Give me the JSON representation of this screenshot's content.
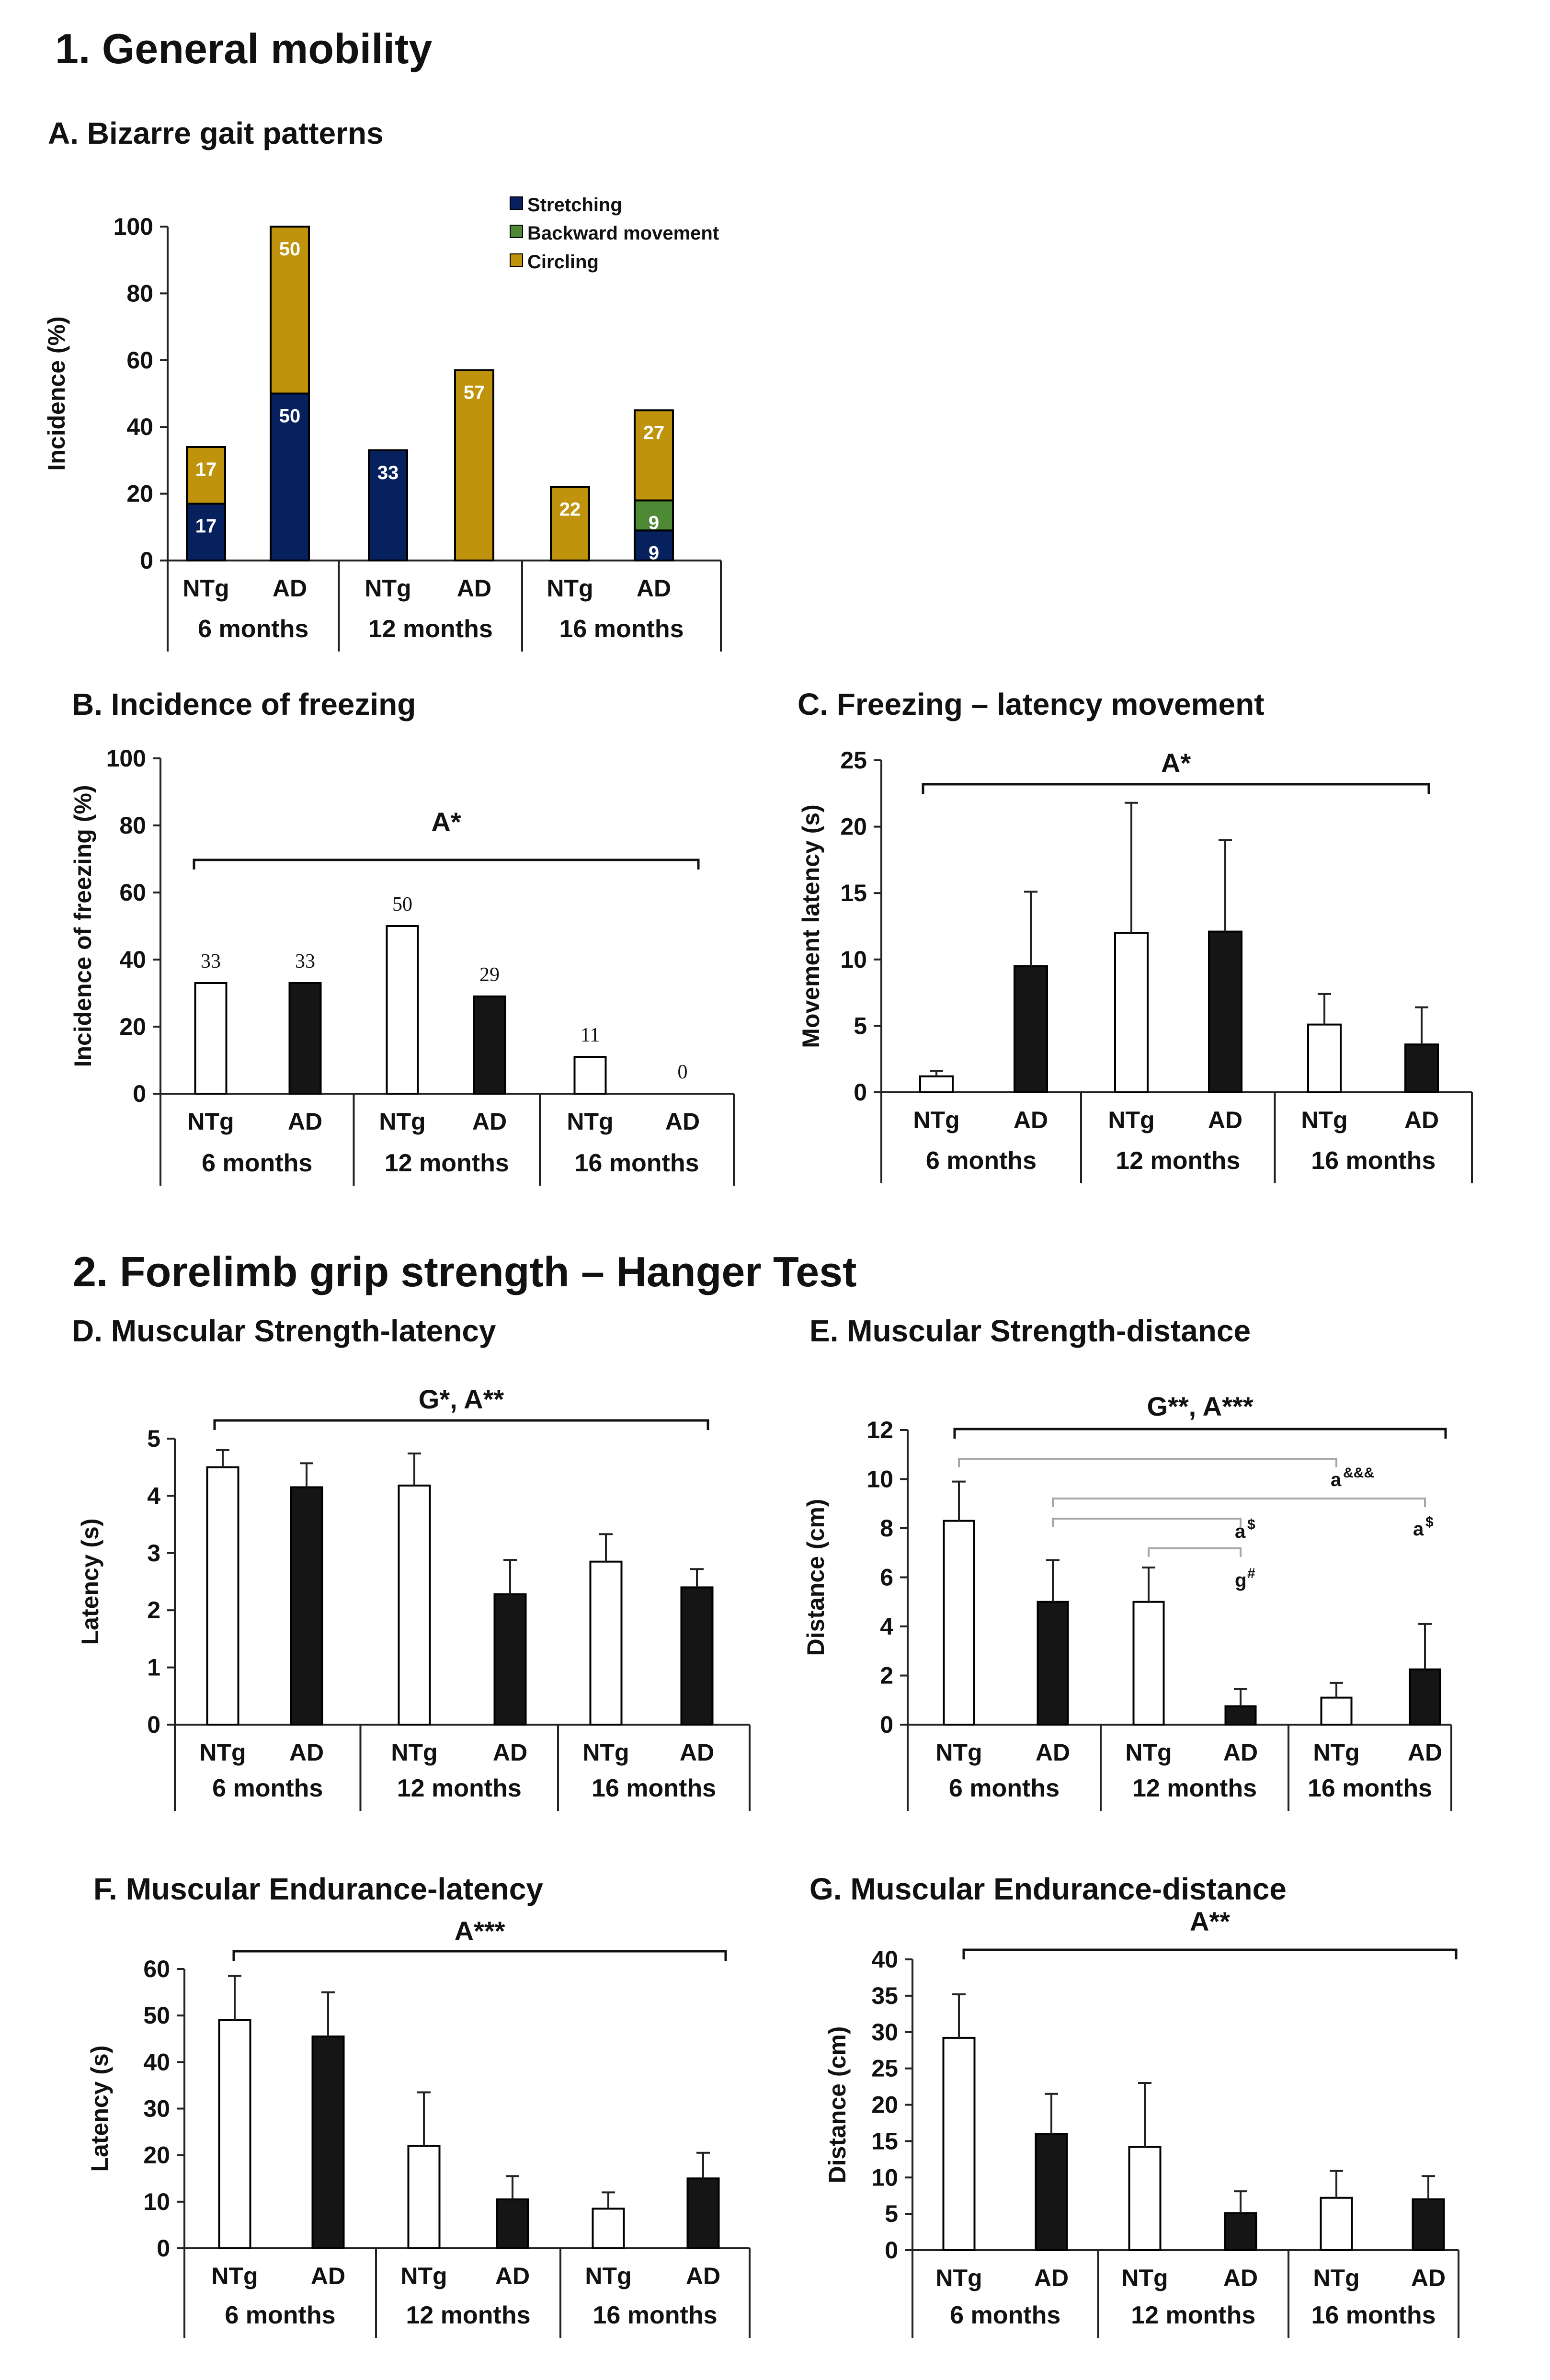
{
  "colors": {
    "stretching": "#06215e",
    "backward": "#4e8a36",
    "circling": "#c0930c",
    "ad_bar": "#151515",
    "ntg_bar": "#ffffff",
    "bracket_light": "#a6a6a6"
  },
  "sections": {
    "general": "1.  General mobility",
    "grip": "2. Forelimb grip strength – Hanger Test"
  },
  "chart_data": [
    {
      "id": "A",
      "type": "bar",
      "stacked": true,
      "title": "A.  Bizarre gait patterns",
      "ylabel": "Incidence (%)",
      "ylim": [
        0,
        100
      ],
      "yticks": [
        0,
        20,
        40,
        60,
        80,
        100
      ],
      "categories": [
        "NTg",
        "AD",
        "NTg",
        "AD",
        "NTg",
        "AD"
      ],
      "groups": [
        "6 months",
        "12 months",
        "16 months"
      ],
      "legend": [
        "Stretching",
        "Backward movement",
        "Circling"
      ],
      "series": [
        {
          "name": "Stretching",
          "values": [
            17,
            50,
            33,
            0,
            0,
            9
          ],
          "labels": [
            "17",
            "50",
            "33",
            "",
            "",
            "9"
          ]
        },
        {
          "name": "Backward movement",
          "values": [
            0,
            0,
            0,
            0,
            0,
            9
          ],
          "labels": [
            "",
            "",
            "",
            "",
            "",
            "9"
          ]
        },
        {
          "name": "Circling",
          "values": [
            17,
            50,
            0,
            57,
            22,
            27
          ],
          "labels": [
            "17",
            "50",
            "",
            "57",
            "22",
            "27"
          ]
        }
      ]
    },
    {
      "id": "B",
      "type": "bar",
      "title": "B. Incidence  of freezing",
      "ylabel": "Incidence of freezing (%)",
      "ylim": [
        0,
        100
      ],
      "yticks": [
        0,
        20,
        40,
        60,
        80,
        100
      ],
      "categories": [
        "NTg",
        "AD",
        "NTg",
        "AD",
        "NTg",
        "AD"
      ],
      "groups": [
        "6 months",
        "12 months",
        "16 months"
      ],
      "values": [
        33,
        33,
        50,
        29,
        11,
        0
      ],
      "value_labels": [
        "33",
        "33",
        "50",
        "29",
        "11",
        "0"
      ],
      "significance": "A*"
    },
    {
      "id": "C",
      "type": "bar",
      "title": "C.  Freezing – latency movement",
      "ylabel": "Movement latency (s)",
      "ylim": [
        0,
        25
      ],
      "yticks": [
        0,
        5,
        10,
        15,
        20,
        25
      ],
      "categories": [
        "NTg",
        "AD",
        "NTg",
        "AD",
        "NTg",
        "AD"
      ],
      "groups": [
        "6 months",
        "12 months",
        "16 months"
      ],
      "values": [
        1.2,
        9.5,
        12,
        12.1,
        5.1,
        3.6
      ],
      "errors": [
        0.4,
        5.6,
        9.8,
        6.9,
        2.3,
        2.8
      ],
      "significance": "A*"
    },
    {
      "id": "D",
      "type": "bar",
      "title": "D. Muscular  Strength-latency",
      "ylabel": "Latency (s)",
      "ylim": [
        0,
        5
      ],
      "yticks": [
        0,
        1,
        2,
        3,
        4,
        5
      ],
      "categories": [
        "NTg",
        "AD",
        "NTg",
        "AD",
        "NTg",
        "AD"
      ],
      "groups": [
        "6 months",
        "12 months",
        "16 months"
      ],
      "values": [
        4.5,
        4.15,
        4.18,
        2.28,
        2.85,
        2.4
      ],
      "errors": [
        0.3,
        0.42,
        0.56,
        0.6,
        0.48,
        0.32
      ],
      "significance": "G*, A**"
    },
    {
      "id": "E",
      "type": "bar",
      "title": "E. Muscular  Strength-distance",
      "ylabel": "Distance (cm)",
      "ylim": [
        0,
        12
      ],
      "yticks": [
        0,
        2,
        4,
        6,
        8,
        10,
        12
      ],
      "categories": [
        "NTg",
        "AD",
        "NTg",
        "AD",
        "NTg",
        "AD"
      ],
      "groups": [
        "6 months",
        "12 months",
        "16 months"
      ],
      "values": [
        8.3,
        5.0,
        5.0,
        0.75,
        1.1,
        2.25
      ],
      "errors": [
        1.6,
        1.7,
        1.4,
        0.7,
        0.6,
        1.85
      ],
      "significance": "G**, A***",
      "pairwise": [
        {
          "label": "a",
          "sup": "&&&"
        },
        {
          "label": "a",
          "sup": "$"
        },
        {
          "label": "g",
          "sup": "#"
        },
        {
          "label": "a",
          "sup": "$"
        }
      ]
    },
    {
      "id": "F",
      "type": "bar",
      "title": "F. Muscular Endurance-latency",
      "ylabel": "Latency (s)",
      "ylim": [
        0,
        60
      ],
      "yticks": [
        0,
        10,
        20,
        30,
        40,
        50,
        60
      ],
      "categories": [
        "NTg",
        "AD",
        "NTg",
        "AD",
        "NTg",
        "AD"
      ],
      "groups": [
        "6 months",
        "12 months",
        "16 months"
      ],
      "values": [
        49,
        45.5,
        22,
        10.5,
        8.5,
        15
      ],
      "errors": [
        9.5,
        9.5,
        11.5,
        5,
        3.5,
        5.5
      ],
      "significance": "A***"
    },
    {
      "id": "G",
      "type": "bar",
      "title": "G. Muscular Endurance-distance",
      "ylabel": "Distance (cm)",
      "ylim": [
        0,
        40
      ],
      "yticks": [
        0,
        5,
        10,
        15,
        20,
        25,
        30,
        35,
        40
      ],
      "categories": [
        "NTg",
        "AD",
        "NTg",
        "AD",
        "NTg",
        "AD"
      ],
      "groups": [
        "6 months",
        "12 months",
        "16 months"
      ],
      "values": [
        29.2,
        16,
        14.2,
        5.1,
        7.2,
        7
      ],
      "errors": [
        6,
        5.5,
        8.8,
        3,
        3.7,
        3.2
      ],
      "significance": "A**"
    }
  ]
}
